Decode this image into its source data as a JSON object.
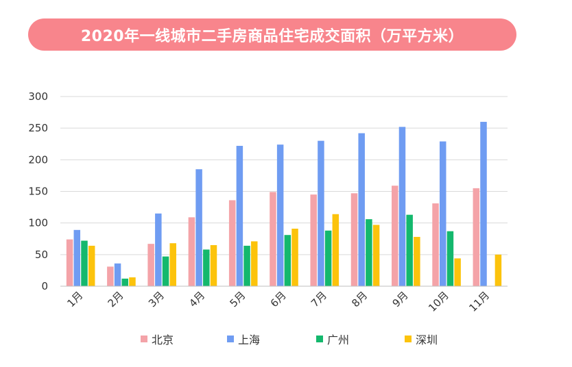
{
  "title": "2020年一线城市二手房商品住宅成交面积（万平方米）",
  "chart_data": {
    "type": "bar",
    "categories": [
      "1月",
      "2月",
      "3月",
      "4月",
      "5月",
      "6月",
      "7月",
      "8月",
      "9月",
      "10月",
      "11月"
    ],
    "series": [
      {
        "name": "北京",
        "color": "#f4a3a8",
        "values": [
          74,
          31,
          67,
          109,
          136,
          149,
          145,
          147,
          159,
          131,
          155
        ]
      },
      {
        "name": "上海",
        "color": "#6f9cf2",
        "values": [
          89,
          36,
          115,
          185,
          222,
          224,
          230,
          242,
          252,
          229,
          260
        ]
      },
      {
        "name": "广州",
        "color": "#14b86d",
        "values": [
          72,
          12,
          47,
          58,
          64,
          81,
          88,
          106,
          113,
          87,
          null
        ]
      },
      {
        "name": "深圳",
        "color": "#fcc30c",
        "values": [
          64,
          14,
          68,
          65,
          71,
          91,
          114,
          97,
          78,
          44,
          50
        ]
      }
    ],
    "ylim": [
      0,
      300
    ],
    "yticks": [
      0,
      50,
      100,
      150,
      200,
      250,
      300
    ],
    "grid": true,
    "legend": "bottom"
  }
}
